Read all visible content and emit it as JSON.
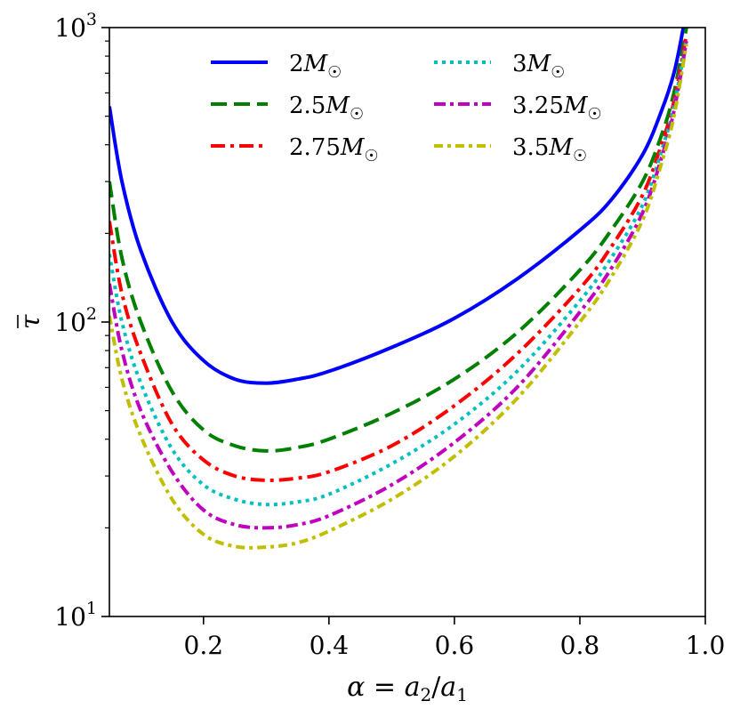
{
  "chart_data": {
    "type": "line",
    "title": "",
    "xlabel": "α = a₂/a₁",
    "ylabel": "τ̄",
    "xlim": [
      0.05,
      1.0
    ],
    "ylim": [
      10,
      1000
    ],
    "yscale": "log",
    "x_ticks": [
      {
        "value": 0.2,
        "label": "0.2"
      },
      {
        "value": 0.4,
        "label": "0.4"
      },
      {
        "value": 0.6,
        "label": "0.6"
      },
      {
        "value": 0.8,
        "label": "0.8"
      },
      {
        "value": 1.0,
        "label": "1.0"
      }
    ],
    "y_ticks": [
      {
        "value": 10,
        "base": "10",
        "exp": "1"
      },
      {
        "value": 100,
        "base": "10",
        "exp": "2"
      },
      {
        "value": 1000,
        "base": "10",
        "exp": "3"
      }
    ],
    "legend_position": "top",
    "series": [
      {
        "name": "2M☉",
        "num": "2",
        "color": "#0000ff",
        "dash": "solid",
        "x": [
          0.05,
          0.07,
          0.1,
          0.15,
          0.2,
          0.25,
          0.3,
          0.35,
          0.4,
          0.5,
          0.6,
          0.7,
          0.8,
          0.85,
          0.9,
          0.93,
          0.95,
          0.965
        ],
        "y": [
          540,
          300,
          175,
          100,
          74,
          64,
          62,
          64,
          68,
          82,
          103,
          140,
          205,
          260,
          370,
          520,
          700,
          1000
        ]
      },
      {
        "name": "2.5M☉",
        "num": "2.5",
        "color": "#008000",
        "dash": "dashed",
        "x": [
          0.05,
          0.07,
          0.1,
          0.15,
          0.2,
          0.25,
          0.3,
          0.35,
          0.4,
          0.5,
          0.6,
          0.7,
          0.8,
          0.85,
          0.9,
          0.93,
          0.95,
          0.97
        ],
        "y": [
          300,
          165,
          100,
          58,
          43,
          38,
          36.5,
          37.5,
          40,
          49,
          64,
          92,
          150,
          205,
          300,
          430,
          600,
          1000
        ]
      },
      {
        "name": "2.75M☉",
        "num": "2.75",
        "color": "#ff0000",
        "dash": "dashdot",
        "x": [
          0.05,
          0.07,
          0.1,
          0.15,
          0.2,
          0.25,
          0.3,
          0.35,
          0.4,
          0.5,
          0.6,
          0.7,
          0.8,
          0.85,
          0.9,
          0.93,
          0.95,
          0.97
        ],
        "y": [
          220,
          125,
          78,
          45,
          34,
          30,
          29,
          29.5,
          31,
          38,
          52,
          78,
          130,
          180,
          270,
          400,
          560,
          950
        ]
      },
      {
        "name": "3M☉",
        "num": "3",
        "color": "#00bfbf",
        "dash": "dotted",
        "x": [
          0.05,
          0.07,
          0.1,
          0.15,
          0.2,
          0.25,
          0.3,
          0.35,
          0.4,
          0.5,
          0.6,
          0.7,
          0.8,
          0.85,
          0.9,
          0.93,
          0.95,
          0.97
        ],
        "y": [
          170,
          100,
          62,
          37,
          28,
          25,
          24,
          24.5,
          26,
          33,
          45,
          68,
          118,
          165,
          250,
          380,
          540,
          920
        ]
      },
      {
        "name": "3.25M☉",
        "num": "3.25",
        "color": "#bf00bf",
        "dash": "dashdot2",
        "x": [
          0.05,
          0.07,
          0.1,
          0.15,
          0.2,
          0.25,
          0.3,
          0.35,
          0.4,
          0.5,
          0.6,
          0.7,
          0.8,
          0.85,
          0.9,
          0.93,
          0.95,
          0.97
        ],
        "y": [
          135,
          80,
          50,
          31,
          23,
          20.5,
          20,
          20.5,
          22,
          28,
          39,
          60,
          108,
          152,
          235,
          360,
          520,
          900
        ]
      },
      {
        "name": "3.5M☉",
        "num": "3.5",
        "color": "#bfbf00",
        "dash": "dashdot3",
        "x": [
          0.05,
          0.07,
          0.1,
          0.15,
          0.2,
          0.25,
          0.3,
          0.35,
          0.4,
          0.5,
          0.6,
          0.7,
          0.8,
          0.85,
          0.9,
          0.93,
          0.95,
          0.97
        ],
        "y": [
          105,
          64,
          41,
          25,
          19,
          17.3,
          17.2,
          17.8,
          19.5,
          25,
          35,
          55,
          100,
          142,
          222,
          345,
          500,
          880
        ]
      }
    ]
  }
}
